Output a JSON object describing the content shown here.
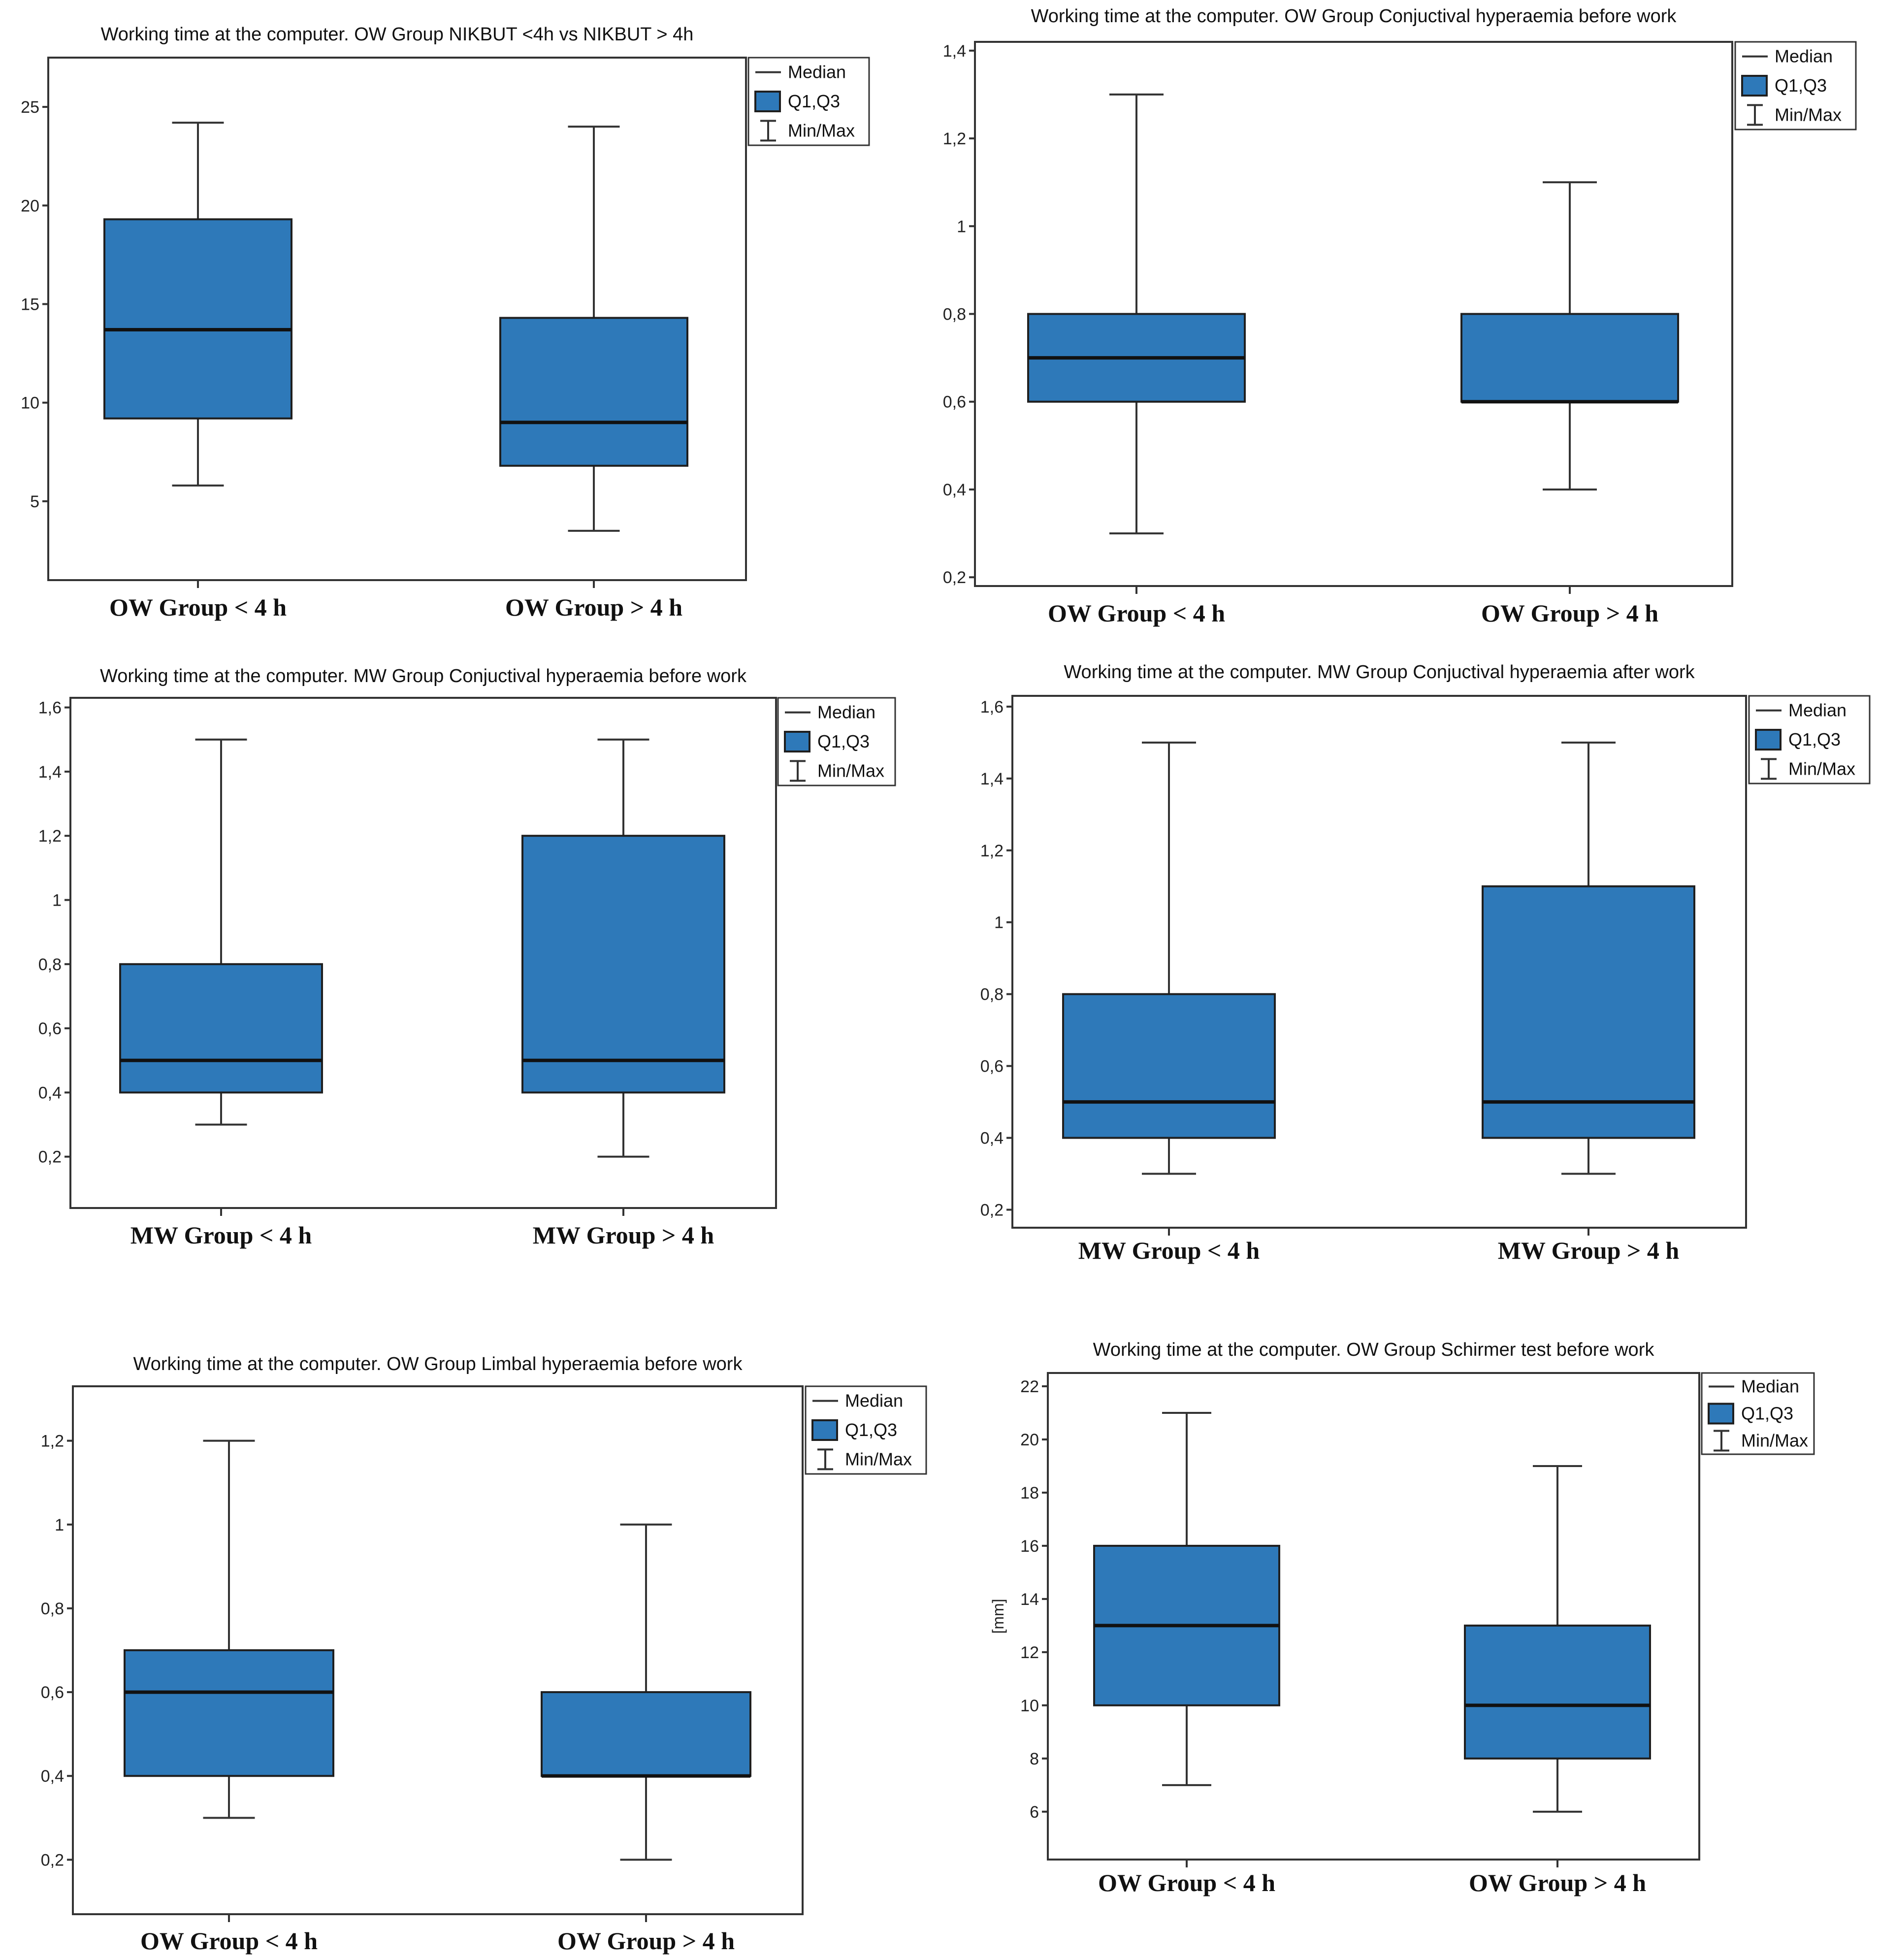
{
  "legend": {
    "median": "Median",
    "quartiles": "Q1,Q3",
    "range": "Min/Max"
  },
  "colors": {
    "box": "#2e79b9",
    "line": "#333333",
    "median": "#111111"
  },
  "chart_data": [
    {
      "type": "box",
      "title": "Working time at the computer. OW Group NIKBUT <4h vs NIKBUT > 4h",
      "ylabel": "",
      "ylim": [
        1,
        27.5
      ],
      "yticks": [
        5,
        10,
        15,
        20,
        25
      ],
      "categories": [
        "OW Group < 4 h",
        "OW Group > 4 h"
      ],
      "boxes": [
        {
          "min": 5.8,
          "q1": 9.2,
          "median": 13.7,
          "q3": 19.3,
          "max": 24.2
        },
        {
          "min": 3.5,
          "q1": 6.8,
          "median": 9.0,
          "q3": 14.3,
          "max": 24.0
        }
      ]
    },
    {
      "type": "box",
      "title": "Working time at the computer. OW Group Conjuctival hyperaemia before work",
      "ylabel": "",
      "ylim": [
        0.18,
        1.42
      ],
      "yticks": [
        "0,2",
        "0,4",
        "0,6",
        "0,8",
        "1",
        "1,2",
        "1,4"
      ],
      "categories": [
        "OW Group < 4 h",
        "OW Group > 4 h"
      ],
      "boxes": [
        {
          "min": 0.3,
          "q1": 0.6,
          "median": 0.7,
          "q3": 0.8,
          "max": 1.3
        },
        {
          "min": 0.4,
          "q1": 0.6,
          "median": 0.6,
          "q3": 0.8,
          "max": 1.1
        }
      ]
    },
    {
      "type": "box",
      "title": "Working time at the computer. MW Group Conjuctival hyperaemia before work",
      "ylabel": "",
      "ylim": [
        0.04,
        1.63
      ],
      "yticks": [
        "0,2",
        "0,4",
        "0,6",
        "0,8",
        "1",
        "1,2",
        "1,4",
        "1,6"
      ],
      "categories": [
        "MW Group < 4 h",
        "MW Group > 4 h"
      ],
      "boxes": [
        {
          "min": 0.3,
          "q1": 0.4,
          "median": 0.5,
          "q3": 0.8,
          "max": 1.5
        },
        {
          "min": 0.2,
          "q1": 0.4,
          "median": 0.5,
          "q3": 1.2,
          "max": 1.5
        }
      ]
    },
    {
      "type": "box",
      "title": "Working time at the computer. MW Group Conjuctival hyperaemia after work",
      "ylabel": "",
      "ylim": [
        0.15,
        1.63
      ],
      "yticks": [
        "0,2",
        "0,4",
        "0,6",
        "0,8",
        "1",
        "1,2",
        "1,4",
        "1,6"
      ],
      "categories": [
        "MW Group < 4 h",
        "MW Group > 4 h"
      ],
      "boxes": [
        {
          "min": 0.3,
          "q1": 0.4,
          "median": 0.5,
          "q3": 0.8,
          "max": 1.5
        },
        {
          "min": 0.3,
          "q1": 0.4,
          "median": 0.5,
          "q3": 1.1,
          "max": 1.5
        }
      ]
    },
    {
      "type": "box",
      "title": "Working time at the computer. OW Group Limbal hyperaemia before work",
      "ylabel": "",
      "ylim": [
        0.07,
        1.33
      ],
      "yticks": [
        "0,2",
        "0,4",
        "0,6",
        "0,8",
        "1",
        "1,2"
      ],
      "categories": [
        "OW Group < 4 h",
        "OW Group > 4 h"
      ],
      "boxes": [
        {
          "min": 0.3,
          "q1": 0.4,
          "median": 0.6,
          "q3": 0.7,
          "max": 1.2
        },
        {
          "min": 0.2,
          "q1": 0.4,
          "median": 0.4,
          "q3": 0.6,
          "max": 1.0
        }
      ]
    },
    {
      "type": "box",
      "title": "Working time at the computer. OW Group Schirmer test before work",
      "ylabel": "[mm]",
      "ylim": [
        4.2,
        22.5
      ],
      "yticks": [
        6,
        8,
        10,
        12,
        14,
        16,
        18,
        20,
        22
      ],
      "categories": [
        "OW Group < 4 h",
        "OW Group > 4 h"
      ],
      "boxes": [
        {
          "min": 7,
          "q1": 10,
          "median": 13,
          "q3": 16,
          "max": 21
        },
        {
          "min": 6,
          "q1": 8,
          "median": 10,
          "q3": 13,
          "max": 19
        }
      ]
    }
  ]
}
